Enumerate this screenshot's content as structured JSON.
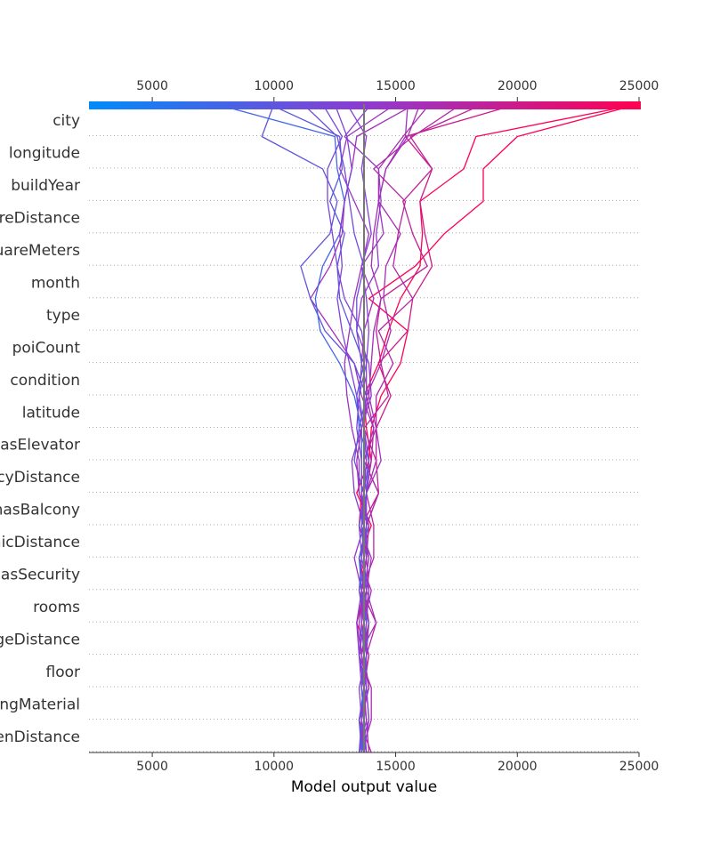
{
  "chart_data": {
    "type": "line",
    "xlabel": "Model output value",
    "xlim": [
      2400,
      25000
    ],
    "xticks": [
      5000,
      10000,
      15000,
      20000,
      25000
    ],
    "expected_value": 13700,
    "colorbar": {
      "low_color": "#008bfb",
      "high_color": "#ff0052",
      "range": [
        2400,
        25000
      ]
    },
    "features": [
      "city",
      "longitude",
      "buildYear",
      "centreDistance",
      "squareMeters",
      "month",
      "type",
      "poiCount",
      "condition",
      "latitude",
      "hasElevator",
      "pharmacyDistance",
      "hasBalcony",
      "clinicDistance",
      "hasSecurity",
      "rooms",
      "collegeDistance",
      "floor",
      "buildingMaterial",
      "kindergartenDistance"
    ],
    "series": [
      {
        "final": 25000,
        "values": [
          13500,
          13700,
          13600,
          13900,
          13400,
          13800,
          13500,
          14000,
          13400,
          13900,
          14000,
          14400,
          15200,
          15500,
          13900,
          15800,
          17000,
          18600,
          18600,
          20000,
          25000
        ]
      },
      {
        "final": 25000,
        "values": [
          13700,
          13500,
          13800,
          13600,
          13900,
          13700,
          13900,
          13500,
          13600,
          14000,
          13800,
          13700,
          14300,
          14700,
          15200,
          16000,
          16100,
          16000,
          17800,
          18300,
          25000
        ]
      },
      {
        "final": 20000,
        "values": [
          13800,
          13500,
          13900,
          13700,
          13700,
          13900,
          13800,
          13600,
          14300,
          13700,
          14200,
          14800,
          14300,
          15500,
          15700,
          16500,
          16200,
          16000,
          16500,
          15400,
          20000
        ]
      },
      {
        "final": 18600,
        "values": [
          14000,
          13500,
          13900,
          13700,
          13900,
          13600,
          13800,
          13800,
          14300,
          14200,
          13700,
          14700,
          14400,
          14200,
          14400,
          16300,
          15700,
          15300,
          16500,
          15600,
          18600
        ]
      },
      {
        "final": 17700,
        "values": [
          13800,
          13600,
          13700,
          13800,
          14200,
          13600,
          14100,
          14100,
          13800,
          14200,
          14200,
          14200,
          14900,
          14300,
          15700,
          14900,
          15100,
          15400,
          14100,
          15700,
          17700
        ]
      },
      {
        "final": 16400,
        "values": [
          13600,
          14000,
          14000,
          13500,
          13700,
          14000,
          13500,
          13800,
          14300,
          13700,
          14100,
          13800,
          14400,
          14800,
          14500,
          14600,
          15200,
          14300,
          14300,
          15300,
          16400
        ]
      },
      {
        "final": 15500,
        "values": [
          13500,
          13900,
          13800,
          13500,
          14200,
          13800,
          14000,
          13500,
          13800,
          14400,
          14200,
          13900,
          13600,
          13700,
          14100,
          13600,
          14500,
          14300,
          14600,
          15400,
          15500
        ]
      },
      {
        "final": 15800,
        "values": [
          13700,
          13500,
          13800,
          13600,
          13400,
          13700,
          13700,
          13700,
          13800,
          14000,
          14100,
          13600,
          13300,
          12400,
          11500,
          12300,
          12800,
          12900,
          13200,
          13400,
          15800
        ]
      },
      {
        "final": 15000,
        "values": [
          13800,
          13600,
          13900,
          13600,
          13500,
          13700,
          13500,
          13900,
          13500,
          13500,
          13200,
          13000,
          12900,
          13100,
          13300,
          13600,
          13900,
          13300,
          12700,
          13000,
          15000
        ]
      },
      {
        "final": 14000,
        "values": [
          13600,
          13700,
          13600,
          13500,
          13400,
          13600,
          13300,
          13700,
          13300,
          13200,
          13600,
          14000,
          13900,
          13400,
          13600,
          14300,
          14200,
          14400,
          14300,
          12900,
          14000
        ]
      },
      {
        "final": 10000,
        "values": [
          13600,
          13500,
          13700,
          13800,
          13700,
          13500,
          13800,
          13600,
          13700,
          13300,
          13500,
          13800,
          13300,
          12100,
          11500,
          11100,
          12300,
          12600,
          12000,
          9500,
          10000
        ]
      },
      {
        "final": 7600,
        "values": [
          13600,
          13700,
          13600,
          13700,
          13800,
          13600,
          13500,
          13900,
          13600,
          13600,
          13600,
          13300,
          12700,
          11900,
          11700,
          12000,
          12700,
          12900,
          12600,
          12500,
          7600
        ]
      },
      {
        "final": 9800,
        "values": [
          13500,
          13600,
          13800,
          13700,
          13600,
          13800,
          13700,
          13600,
          13800,
          13900,
          13500,
          13400,
          13700,
          13200,
          12700,
          12600,
          12900,
          12300,
          12800,
          12700,
          9800
        ]
      },
      {
        "final": 12000,
        "values": [
          13800,
          13700,
          13700,
          13500,
          13600,
          13700,
          13900,
          13700,
          13600,
          13600,
          13400,
          13500,
          13800,
          13600,
          12900,
          12600,
          12400,
          12200,
          12200,
          12800,
          12000
        ]
      },
      {
        "final": 13000,
        "values": [
          13700,
          13900,
          13800,
          13600,
          13800,
          13900,
          13600,
          13800,
          13700,
          13800,
          13700,
          13800,
          13800,
          13900,
          13800,
          13600,
          14000,
          13800,
          13600,
          13800,
          13000
        ]
      },
      {
        "final": 11200,
        "values": [
          13500,
          13800,
          13600,
          13800,
          13900,
          13500,
          13600,
          13500,
          13700,
          13900,
          13700,
          13500,
          13600,
          13400,
          13400,
          13700,
          13300,
          13100,
          12900,
          12600,
          11200
        ]
      },
      {
        "final": 16000,
        "values": [
          13900,
          13800,
          13700,
          13900,
          13600,
          13600,
          13800,
          13900,
          13500,
          13400,
          13600,
          13900,
          14000,
          14100,
          14400,
          14000,
          14100,
          14300,
          14600,
          15500,
          16000
        ]
      },
      {
        "final": 12500,
        "values": [
          13700,
          13600,
          13500,
          13800,
          13700,
          13800,
          13700,
          13800,
          13800,
          13700,
          13700,
          13400,
          13100,
          12800,
          12600,
          12800,
          12700,
          12900,
          13200,
          13000,
          12500
        ]
      }
    ]
  }
}
